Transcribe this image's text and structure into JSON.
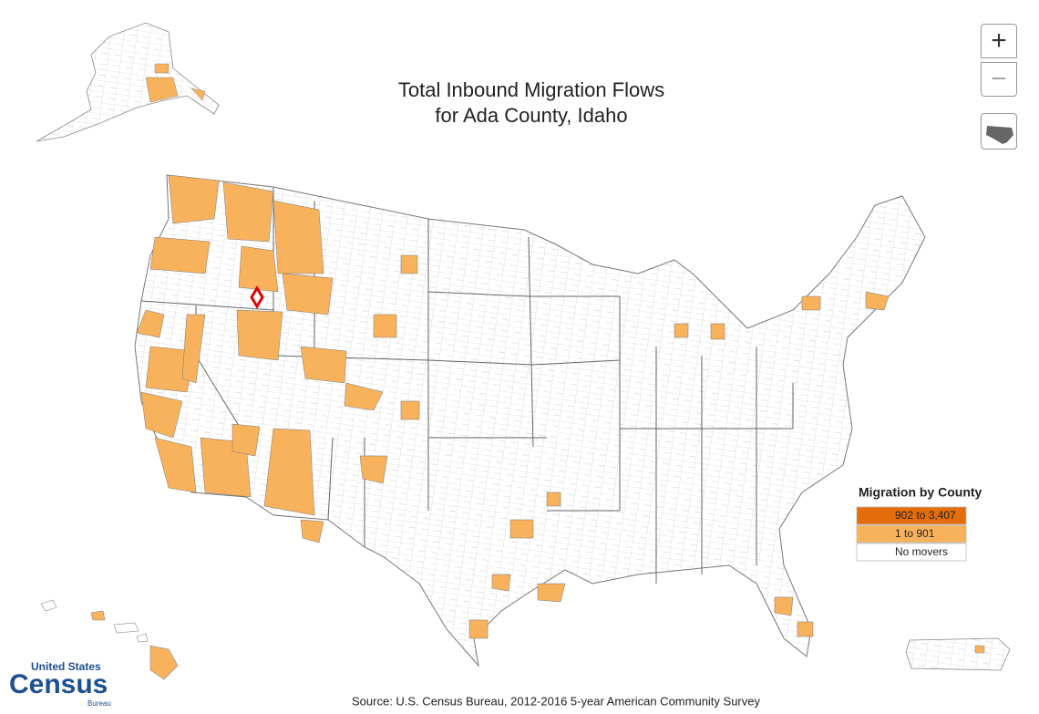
{
  "title": [
    "Total Inbound Migration Flows",
    "for Ada County, Idaho"
  ],
  "controls": {
    "zoom_in": "+",
    "zoom_out": "−"
  },
  "legend": {
    "title": "Migration by County",
    "items": [
      {
        "label": "902 to 3,407",
        "color": "#e46c0a"
      },
      {
        "label": "1 to 901",
        "color": "#f8b25c"
      },
      {
        "label": "No movers",
        "color": "#ffffff"
      }
    ]
  },
  "logo": {
    "top": "United States",
    "name": "Census",
    "bottom": "Bureau"
  },
  "source": "Source: U.S. Census Bureau, 2012-2016 5-year American Community Survey"
}
